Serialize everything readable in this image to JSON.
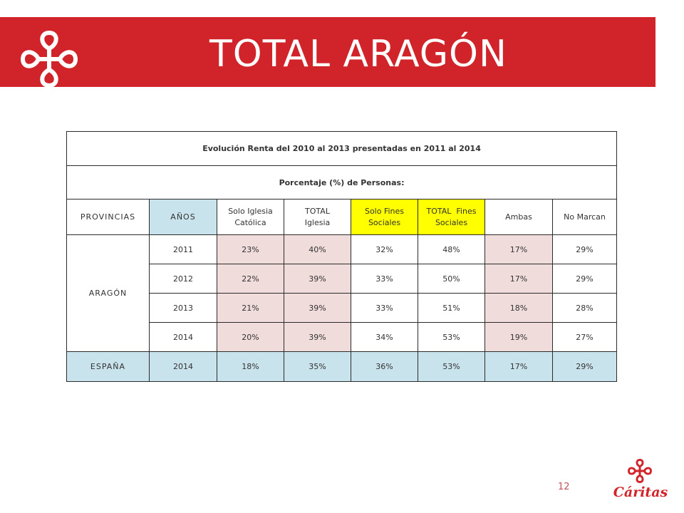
{
  "slide": {
    "title": "TOTAL  ARAGÓN",
    "page_number": "12",
    "brand_name": "Cáritas",
    "accent_color": "#d1232a"
  },
  "table": {
    "title_main": "Evolución Renta del 2010 al 2013",
    "title_small": "presentadas en 2011 al 2014",
    "subtitle": "Porcentaje (%) de Personas:",
    "headers": {
      "provincias": "PROVINCIAS",
      "anos": "AÑOS",
      "solo_iglesia_1": "Solo Iglesia",
      "solo_iglesia_2": "Católica",
      "total_iglesia_1": "TOTAL",
      "total_iglesia_2": "Iglesia",
      "solo_fines_1": "Solo Fines",
      "solo_fines_2": "Sociales",
      "total_fines_1": "TOTAL  Fines",
      "total_fines_2": "Sociales",
      "ambas": "Ambas",
      "no_marcan": "No Marcan"
    },
    "aragon_label": "ARAGÓN",
    "aragon_rows": [
      {
        "year": "2011",
        "solo_iglesia": "23%",
        "total_iglesia": "40%",
        "solo_fines": "32%",
        "total_fines": "48%",
        "ambas": "17%",
        "no_marcan": "29%"
      },
      {
        "year": "2012",
        "solo_iglesia": "22%",
        "total_iglesia": "39%",
        "solo_fines": "33%",
        "total_fines": "50%",
        "ambas": "17%",
        "no_marcan": "29%"
      },
      {
        "year": "2013",
        "solo_iglesia": "21%",
        "total_iglesia": "39%",
        "solo_fines": "33%",
        "total_fines": "51%",
        "ambas": "18%",
        "no_marcan": "28%"
      },
      {
        "year": "2014",
        "solo_iglesia": "20%",
        "total_iglesia": "39%",
        "solo_fines": "34%",
        "total_fines": "53%",
        "ambas": "19%",
        "no_marcan": "27%"
      }
    ],
    "spain_row": {
      "label": "ESPAÑA",
      "year": "2014",
      "solo_iglesia": "18%",
      "total_iglesia": "35%",
      "solo_fines": "36%",
      "total_fines": "53%",
      "ambas": "17%",
      "no_marcan": "29%"
    }
  }
}
